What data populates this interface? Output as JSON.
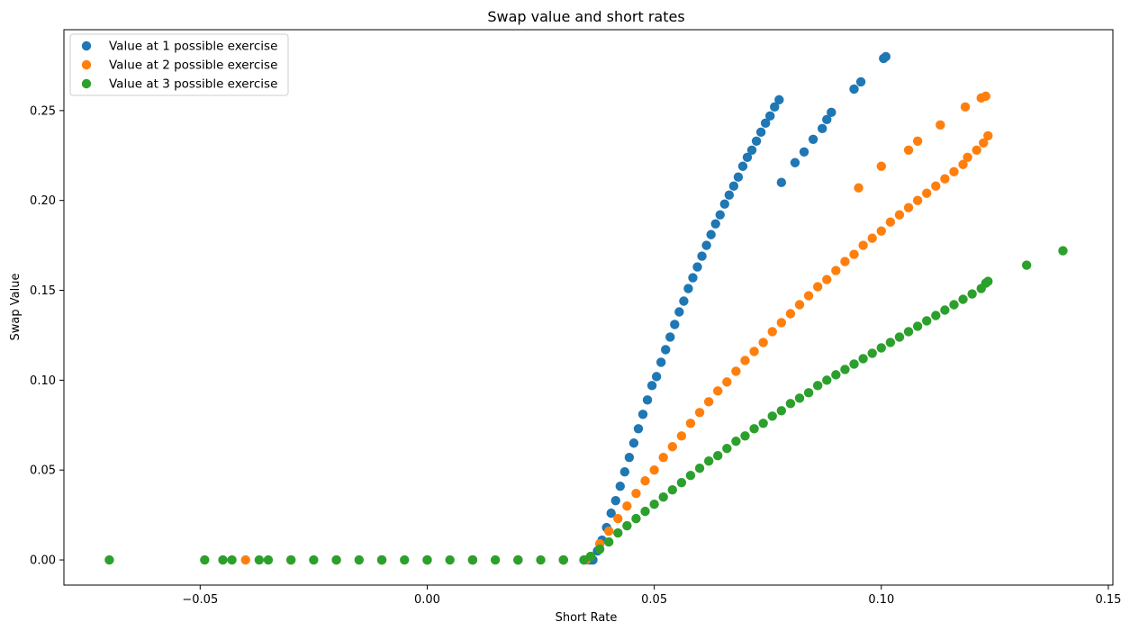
{
  "chart_data": {
    "type": "scatter",
    "title": "Swap value and short rates",
    "xlabel": "Short Rate",
    "ylabel": "Swap Value",
    "xlim": [
      -0.08,
      0.151
    ],
    "ylim": [
      -0.014,
      0.295
    ],
    "xticks": [
      -0.05,
      0.0,
      0.05,
      0.1,
      0.15
    ],
    "xtick_labels": [
      "−0.05",
      "0.00",
      "0.05",
      "0.10",
      "0.15"
    ],
    "yticks": [
      0.0,
      0.05,
      0.1,
      0.15,
      0.2,
      0.25
    ],
    "ytick_labels": [
      "0.00",
      "0.05",
      "0.10",
      "0.15",
      "0.20",
      "0.25"
    ],
    "grid": false,
    "legend_position": "top-left",
    "series": [
      {
        "name": "Value at 1 possible exercise",
        "color": "#1f77b4",
        "points": [
          [
            -0.01,
            0.0
          ],
          [
            0.0,
            0.0
          ],
          [
            0.01,
            0.0
          ],
          [
            0.02,
            0.0
          ],
          [
            0.03,
            0.0
          ],
          [
            0.0355,
            0.0
          ],
          [
            0.036,
            0.0
          ],
          [
            0.0365,
            0.0
          ],
          [
            0.0375,
            0.005
          ],
          [
            0.0385,
            0.011
          ],
          [
            0.0395,
            0.018
          ],
          [
            0.0405,
            0.026
          ],
          [
            0.0415,
            0.033
          ],
          [
            0.0425,
            0.041
          ],
          [
            0.0435,
            0.049
          ],
          [
            0.0445,
            0.057
          ],
          [
            0.0455,
            0.065
          ],
          [
            0.0465,
            0.073
          ],
          [
            0.0475,
            0.081
          ],
          [
            0.0485,
            0.089
          ],
          [
            0.0495,
            0.097
          ],
          [
            0.0505,
            0.102
          ],
          [
            0.0515,
            0.11
          ],
          [
            0.0525,
            0.117
          ],
          [
            0.0535,
            0.124
          ],
          [
            0.0545,
            0.131
          ],
          [
            0.0555,
            0.138
          ],
          [
            0.0565,
            0.144
          ],
          [
            0.0575,
            0.151
          ],
          [
            0.0585,
            0.157
          ],
          [
            0.0595,
            0.163
          ],
          [
            0.0605,
            0.169
          ],
          [
            0.0615,
            0.175
          ],
          [
            0.0625,
            0.181
          ],
          [
            0.0635,
            0.187
          ],
          [
            0.0645,
            0.192
          ],
          [
            0.0655,
            0.198
          ],
          [
            0.0665,
            0.203
          ],
          [
            0.0675,
            0.208
          ],
          [
            0.0685,
            0.213
          ],
          [
            0.0695,
            0.219
          ],
          [
            0.0705,
            0.224
          ],
          [
            0.0715,
            0.228
          ],
          [
            0.0725,
            0.233
          ],
          [
            0.0735,
            0.238
          ],
          [
            0.0745,
            0.243
          ],
          [
            0.0755,
            0.247
          ],
          [
            0.0765,
            0.252
          ],
          [
            0.0775,
            0.256
          ],
          [
            0.078,
            0.21
          ],
          [
            0.081,
            0.221
          ],
          [
            0.083,
            0.227
          ],
          [
            0.085,
            0.234
          ],
          [
            0.087,
            0.24
          ],
          [
            0.088,
            0.245
          ],
          [
            0.089,
            0.249
          ],
          [
            0.094,
            0.262
          ],
          [
            0.0955,
            0.266
          ],
          [
            0.1005,
            0.279
          ],
          [
            0.101,
            0.28
          ]
        ]
      },
      {
        "name": "Value at 2 possible exercise",
        "color": "#ff7f0e",
        "points": [
          [
            -0.04,
            0.0
          ],
          [
            -0.03,
            0.0
          ],
          [
            -0.02,
            0.0
          ],
          [
            -0.01,
            0.0
          ],
          [
            0.0,
            0.0
          ],
          [
            0.01,
            0.0
          ],
          [
            0.02,
            0.0
          ],
          [
            0.03,
            0.0
          ],
          [
            0.035,
            0.0
          ],
          [
            0.036,
            0.002
          ],
          [
            0.038,
            0.009
          ],
          [
            0.04,
            0.016
          ],
          [
            0.042,
            0.023
          ],
          [
            0.044,
            0.03
          ],
          [
            0.046,
            0.037
          ],
          [
            0.048,
            0.044
          ],
          [
            0.05,
            0.05
          ],
          [
            0.052,
            0.057
          ],
          [
            0.054,
            0.063
          ],
          [
            0.056,
            0.069
          ],
          [
            0.058,
            0.076
          ],
          [
            0.06,
            0.082
          ],
          [
            0.062,
            0.088
          ],
          [
            0.064,
            0.094
          ],
          [
            0.066,
            0.099
          ],
          [
            0.068,
            0.105
          ],
          [
            0.07,
            0.111
          ],
          [
            0.072,
            0.116
          ],
          [
            0.074,
            0.121
          ],
          [
            0.076,
            0.127
          ],
          [
            0.078,
            0.132
          ],
          [
            0.08,
            0.137
          ],
          [
            0.082,
            0.142
          ],
          [
            0.084,
            0.147
          ],
          [
            0.086,
            0.152
          ],
          [
            0.088,
            0.156
          ],
          [
            0.09,
            0.161
          ],
          [
            0.092,
            0.166
          ],
          [
            0.094,
            0.17
          ],
          [
            0.096,
            0.175
          ],
          [
            0.098,
            0.179
          ],
          [
            0.1,
            0.183
          ],
          [
            0.102,
            0.188
          ],
          [
            0.104,
            0.192
          ],
          [
            0.106,
            0.196
          ],
          [
            0.108,
            0.2
          ],
          [
            0.11,
            0.204
          ],
          [
            0.112,
            0.208
          ],
          [
            0.114,
            0.212
          ],
          [
            0.116,
            0.216
          ],
          [
            0.118,
            0.22
          ],
          [
            0.119,
            0.224
          ],
          [
            0.121,
            0.228
          ],
          [
            0.1225,
            0.232
          ],
          [
            0.1235,
            0.236
          ],
          [
            0.095,
            0.207
          ],
          [
            0.1,
            0.219
          ],
          [
            0.106,
            0.228
          ],
          [
            0.108,
            0.233
          ],
          [
            0.113,
            0.242
          ],
          [
            0.1185,
            0.252
          ],
          [
            0.122,
            0.257
          ],
          [
            0.123,
            0.258
          ]
        ]
      },
      {
        "name": "Value at 3 possible exercise",
        "color": "#2ca02c",
        "points": [
          [
            -0.07,
            0.0
          ],
          [
            -0.049,
            0.0
          ],
          [
            -0.045,
            0.0
          ],
          [
            -0.043,
            0.0
          ],
          [
            -0.037,
            0.0
          ],
          [
            -0.035,
            0.0
          ],
          [
            -0.03,
            0.0
          ],
          [
            -0.025,
            0.0
          ],
          [
            -0.02,
            0.0
          ],
          [
            -0.015,
            0.0
          ],
          [
            -0.01,
            0.0
          ],
          [
            -0.005,
            0.0
          ],
          [
            0.0,
            0.0
          ],
          [
            0.005,
            0.0
          ],
          [
            0.01,
            0.0
          ],
          [
            0.015,
            0.0
          ],
          [
            0.02,
            0.0
          ],
          [
            0.025,
            0.0
          ],
          [
            0.03,
            0.0
          ],
          [
            0.0345,
            0.0
          ],
          [
            0.036,
            0.002
          ],
          [
            0.038,
            0.006
          ],
          [
            0.04,
            0.01
          ],
          [
            0.042,
            0.015
          ],
          [
            0.044,
            0.019
          ],
          [
            0.046,
            0.023
          ],
          [
            0.048,
            0.027
          ],
          [
            0.05,
            0.031
          ],
          [
            0.052,
            0.035
          ],
          [
            0.054,
            0.039
          ],
          [
            0.056,
            0.043
          ],
          [
            0.058,
            0.047
          ],
          [
            0.06,
            0.051
          ],
          [
            0.062,
            0.055
          ],
          [
            0.064,
            0.058
          ],
          [
            0.066,
            0.062
          ],
          [
            0.068,
            0.066
          ],
          [
            0.07,
            0.069
          ],
          [
            0.072,
            0.073
          ],
          [
            0.074,
            0.076
          ],
          [
            0.076,
            0.08
          ],
          [
            0.078,
            0.083
          ],
          [
            0.08,
            0.087
          ],
          [
            0.082,
            0.09
          ],
          [
            0.084,
            0.093
          ],
          [
            0.086,
            0.097
          ],
          [
            0.088,
            0.1
          ],
          [
            0.09,
            0.103
          ],
          [
            0.092,
            0.106
          ],
          [
            0.094,
            0.109
          ],
          [
            0.096,
            0.112
          ],
          [
            0.098,
            0.115
          ],
          [
            0.1,
            0.118
          ],
          [
            0.102,
            0.121
          ],
          [
            0.104,
            0.124
          ],
          [
            0.106,
            0.127
          ],
          [
            0.108,
            0.13
          ],
          [
            0.11,
            0.133
          ],
          [
            0.112,
            0.136
          ],
          [
            0.114,
            0.139
          ],
          [
            0.116,
            0.142
          ],
          [
            0.118,
            0.145
          ],
          [
            0.12,
            0.148
          ],
          [
            0.122,
            0.151
          ],
          [
            0.123,
            0.154
          ],
          [
            0.1235,
            0.155
          ],
          [
            0.132,
            0.164
          ],
          [
            0.14,
            0.172
          ]
        ]
      }
    ]
  }
}
